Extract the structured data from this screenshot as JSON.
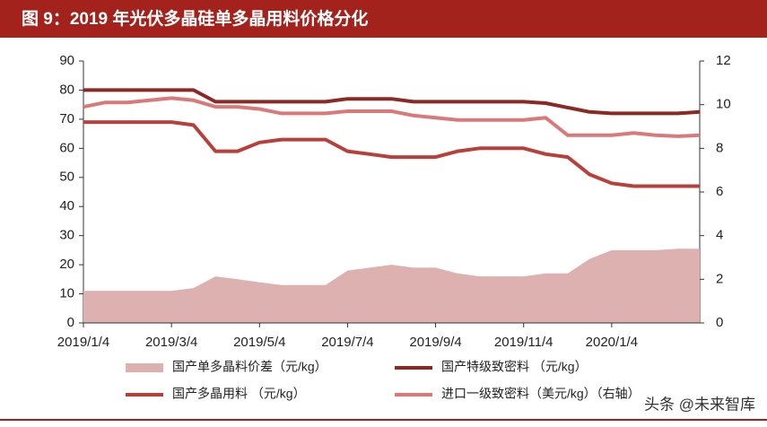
{
  "chart_data": {
    "type": "line",
    "title": "图 9：2019 年光伏多晶硅单多晶用料价格分化",
    "watermark": "头条 @未来智库",
    "categories": [
      "2019/1/4",
      null,
      null,
      null,
      "2019/3/4",
      null,
      null,
      null,
      "2019/5/4",
      null,
      null,
      null,
      "2019/7/4",
      null,
      null,
      null,
      "2019/9/4",
      null,
      null,
      null,
      "2019/11/4",
      null,
      null,
      null,
      "2020/1/4",
      null,
      null,
      null,
      null
    ],
    "series": [
      {
        "name": "国产单多晶料价差（元/kg）",
        "color": "#dcb1af",
        "style": "area",
        "axis": "y",
        "values": [
          11,
          11,
          11,
          11,
          11,
          12,
          16,
          15,
          14,
          13,
          13,
          13,
          18,
          19,
          20,
          19,
          19,
          17,
          16,
          16,
          16,
          17,
          17,
          22,
          25,
          25,
          25,
          25.5,
          25.5
        ]
      },
      {
        "name": "国产特级致密料 （元/kg）",
        "color": "#8b2a25",
        "style": "line",
        "axis": "y",
        "values": [
          80,
          80,
          80,
          80,
          80,
          80,
          76,
          76,
          76,
          76,
          76,
          76,
          77,
          77,
          77,
          76,
          76,
          76,
          76,
          76,
          76,
          75.5,
          74,
          72.5,
          72,
          72,
          72,
          72,
          72.5
        ]
      },
      {
        "name": "国产多晶用料 （元/kg）",
        "color": "#b8403b",
        "style": "line",
        "axis": "y",
        "values": [
          69,
          69,
          69,
          69,
          69,
          68,
          59,
          59,
          62,
          63,
          63,
          63,
          59,
          58,
          57,
          57,
          57,
          59,
          60,
          60,
          60,
          58,
          57,
          51,
          48,
          47,
          47,
          47,
          47
        ]
      },
      {
        "name": "进口一级致密料（美元/kg）（右轴）",
        "color": "#d9797a",
        "style": "line",
        "axis": "y2",
        "values": [
          9.9,
          10.1,
          10.1,
          10.2,
          10.3,
          10.2,
          9.9,
          9.9,
          9.8,
          9.6,
          9.6,
          9.6,
          9.7,
          9.7,
          9.7,
          9.5,
          9.4,
          9.3,
          9.3,
          9.3,
          9.3,
          9.4,
          8.6,
          8.6,
          8.6,
          8.7,
          8.6,
          8.55,
          8.6
        ]
      }
    ],
    "ylim": [
      0,
      90
    ],
    "yticks": [
      0,
      10,
      20,
      30,
      40,
      50,
      60,
      70,
      80,
      90
    ],
    "y2lim": [
      0,
      12
    ],
    "y2ticks": [
      0,
      2,
      4,
      6,
      8,
      10,
      12
    ],
    "grid": false
  }
}
